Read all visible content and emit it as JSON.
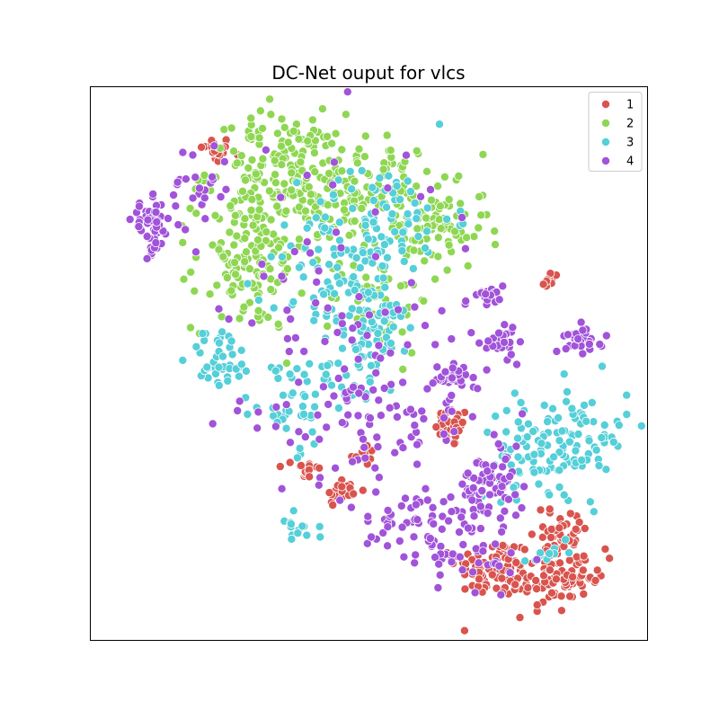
{
  "chart_data": {
    "type": "scatter",
    "title": "DC-Net ouput for vlcs",
    "xlabel": "",
    "ylabel": "",
    "xticks": "none",
    "yticks": "none",
    "grid": false,
    "legend_position": "top-right",
    "xlim": [
      0,
      100
    ],
    "ylim": [
      0,
      100
    ],
    "point_stroke": "#ffffff",
    "series": [
      {
        "name": "1",
        "color": "#d9544e",
        "clusters": [
          {
            "cx": 22.6,
            "cy": 88.5,
            "sx": 1.4,
            "sy": 1.2,
            "n": 28
          },
          {
            "cx": 82.7,
            "cy": 65.0,
            "sx": 0.9,
            "sy": 0.9,
            "n": 9
          },
          {
            "cx": 65.0,
            "cy": 38.5,
            "sx": 1.5,
            "sy": 1.8,
            "n": 32
          },
          {
            "cx": 49.0,
            "cy": 33.5,
            "sx": 1.1,
            "sy": 1.0,
            "n": 14
          },
          {
            "cx": 39.0,
            "cy": 30.8,
            "sx": 1.2,
            "sy": 1.1,
            "n": 18
          },
          {
            "cx": 45.3,
            "cy": 26.8,
            "sx": 1.6,
            "sy": 1.4,
            "n": 26
          },
          {
            "cx": 72.5,
            "cy": 13.0,
            "sx": 3.4,
            "sy": 2.7,
            "n": 80
          },
          {
            "cx": 82.5,
            "cy": 11.0,
            "sx": 3.4,
            "sy": 3.0,
            "n": 95
          },
          {
            "cx": 84.8,
            "cy": 20.0,
            "sx": 2.6,
            "sy": 2.0,
            "n": 35
          },
          {
            "cx": 89.0,
            "cy": 13.5,
            "sx": 1.8,
            "sy": 1.5,
            "n": 15
          }
        ]
      },
      {
        "name": "2",
        "color": "#8fd753",
        "clusters": [
          {
            "cx": 33.0,
            "cy": 85.0,
            "sx": 6.0,
            "sy": 5.0,
            "n": 140
          },
          {
            "cx": 48.0,
            "cy": 81.0,
            "sx": 7.5,
            "sy": 5.0,
            "n": 150
          },
          {
            "cx": 28.5,
            "cy": 68.0,
            "sx": 5.0,
            "sy": 6.0,
            "n": 125
          },
          {
            "cx": 61.5,
            "cy": 74.0,
            "sx": 5.0,
            "sy": 4.0,
            "n": 75
          },
          {
            "cx": 52.0,
            "cy": 62.0,
            "sx": 4.5,
            "sy": 5.0,
            "n": 45
          }
        ]
      },
      {
        "name": "3",
        "color": "#55cfd8",
        "clusters": [
          {
            "cx": 52.0,
            "cy": 76.0,
            "sx": 6.5,
            "sy": 5.0,
            "n": 90
          },
          {
            "cx": 45.5,
            "cy": 63.0,
            "sx": 5.5,
            "sy": 5.5,
            "n": 80
          },
          {
            "cx": 23.5,
            "cy": 51.0,
            "sx": 2.8,
            "sy": 2.8,
            "n": 40
          },
          {
            "cx": 53.0,
            "cy": 55.5,
            "sx": 2.8,
            "sy": 3.0,
            "n": 40
          },
          {
            "cx": 45.0,
            "cy": 49.0,
            "sx": 5.5,
            "sy": 3.5,
            "n": 40
          },
          {
            "cx": 36.0,
            "cy": 41.0,
            "sx": 4.5,
            "sy": 3.5,
            "n": 30
          },
          {
            "cx": 86.5,
            "cy": 36.5,
            "sx": 5.0,
            "sy": 5.0,
            "n": 95
          },
          {
            "cx": 77.0,
            "cy": 33.0,
            "sx": 4.0,
            "sy": 3.5,
            "n": 40
          },
          {
            "cx": 37.2,
            "cy": 20.5,
            "sx": 1.8,
            "sy": 1.5,
            "n": 14
          },
          {
            "cx": 82.0,
            "cy": 16.0,
            "sx": 2.0,
            "sy": 1.5,
            "n": 10
          }
        ]
      },
      {
        "name": "4",
        "color": "#a153d9",
        "clusters": [
          {
            "cx": 11.0,
            "cy": 74.5,
            "sx": 1.7,
            "sy": 2.4,
            "n": 55
          },
          {
            "cx": 20.0,
            "cy": 82.0,
            "sx": 3.0,
            "sy": 4.0,
            "n": 25
          },
          {
            "cx": 72.0,
            "cy": 62.5,
            "sx": 1.3,
            "sy": 1.1,
            "n": 20
          },
          {
            "cx": 73.5,
            "cy": 53.5,
            "sx": 1.5,
            "sy": 1.3,
            "n": 30
          },
          {
            "cx": 88.8,
            "cy": 54.5,
            "sx": 1.7,
            "sy": 1.3,
            "n": 28
          },
          {
            "cx": 64.5,
            "cy": 47.5,
            "sx": 1.5,
            "sy": 1.3,
            "n": 22
          },
          {
            "cx": 72.0,
            "cy": 27.5,
            "sx": 3.0,
            "sy": 3.0,
            "n": 70
          },
          {
            "cx": 52.0,
            "cy": 41.0,
            "sx": 10.0,
            "sy": 8.0,
            "n": 110
          },
          {
            "cx": 65.0,
            "cy": 18.0,
            "sx": 6.0,
            "sy": 4.0,
            "n": 60
          },
          {
            "cx": 45.0,
            "cy": 65.0,
            "sx": 14.0,
            "sy": 14.0,
            "n": 60
          },
          {
            "cx": 56.0,
            "cy": 20.0,
            "sx": 5.0,
            "sy": 4.0,
            "n": 30
          }
        ]
      }
    ]
  }
}
